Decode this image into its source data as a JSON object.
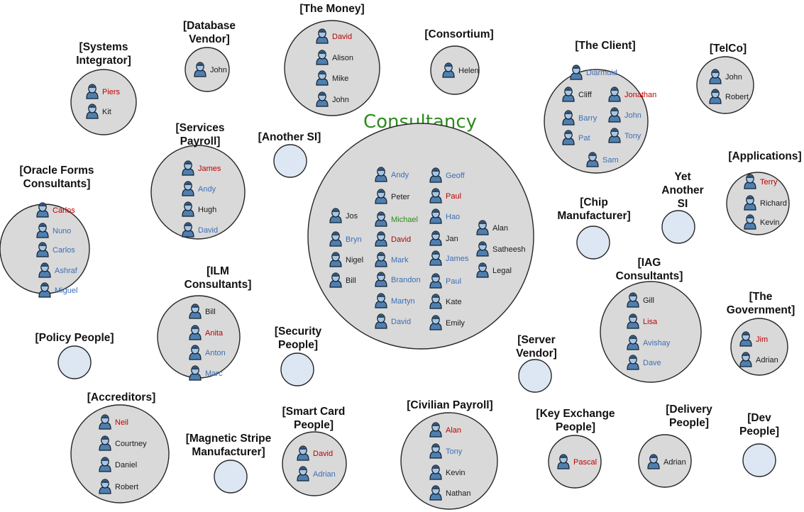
{
  "diagram": {
    "title": "Consultancy",
    "colors": {
      "black": "#1a1a1a",
      "red": "#c00000",
      "blue": "#3b6fb6",
      "green": "#2e8b1e",
      "title": "#2e8b1e"
    },
    "groups": [
      {
        "label": [
          "[Systems",
          "Integrator]"
        ],
        "people": [
          {
            "name": "Piers",
            "color": "red"
          },
          {
            "name": "Kit",
            "color": "black"
          }
        ]
      },
      {
        "label": [
          "[Database",
          "Vendor]"
        ],
        "people": [
          {
            "name": "John",
            "color": "black"
          }
        ]
      },
      {
        "label": [
          "[The Money]"
        ],
        "people": [
          {
            "name": "David",
            "color": "red"
          },
          {
            "name": "Alison",
            "color": "black"
          },
          {
            "name": "Mike",
            "color": "black"
          },
          {
            "name": "John",
            "color": "black"
          }
        ]
      },
      {
        "label": [
          "[Consortium]"
        ],
        "people": [
          {
            "name": "Helen",
            "color": "black"
          }
        ]
      },
      {
        "label": [
          "[The Client]"
        ],
        "people": [
          {
            "name": "Diarmuid",
            "color": "blue"
          },
          {
            "name": "Cliff",
            "color": "black"
          },
          {
            "name": "Jonathan",
            "color": "red"
          },
          {
            "name": "Barry",
            "color": "blue"
          },
          {
            "name": "John",
            "color": "blue"
          },
          {
            "name": "Pat",
            "color": "blue"
          },
          {
            "name": "Tony",
            "color": "blue"
          },
          {
            "name": "Sam",
            "color": "blue"
          }
        ]
      },
      {
        "label": [
          "[TelCo]"
        ],
        "people": [
          {
            "name": "John",
            "color": "black"
          },
          {
            "name": "Robert",
            "color": "black"
          }
        ]
      },
      {
        "label": [
          "[Oracle Forms",
          "Consultants]"
        ],
        "people": [
          {
            "name": "Carlos",
            "color": "red"
          },
          {
            "name": "Nuno",
            "color": "blue"
          },
          {
            "name": "Carlos",
            "color": "blue"
          },
          {
            "name": "Ashraf",
            "color": "blue"
          },
          {
            "name": "Miguel",
            "color": "blue"
          }
        ]
      },
      {
        "label": [
          "[Services",
          "Payroll]"
        ],
        "people": [
          {
            "name": "James",
            "color": "red"
          },
          {
            "name": "Andy",
            "color": "blue"
          },
          {
            "name": "Hugh",
            "color": "black"
          },
          {
            "name": "David",
            "color": "blue"
          }
        ]
      },
      {
        "label": [
          "[Another SI]"
        ],
        "people": []
      },
      {
        "label": [],
        "people": [
          {
            "name": "Jos",
            "color": "black"
          },
          {
            "name": "Bryn",
            "color": "blue"
          },
          {
            "name": "Nigel",
            "color": "black"
          },
          {
            "name": "Bill",
            "color": "black"
          },
          {
            "name": "Andy",
            "color": "blue"
          },
          {
            "name": "Peter",
            "color": "black"
          },
          {
            "name": "Michael",
            "color": "green"
          },
          {
            "name": "David",
            "color": "red"
          },
          {
            "name": "Mark",
            "color": "blue"
          },
          {
            "name": "Brandon",
            "color": "blue"
          },
          {
            "name": "Martyn",
            "color": "blue"
          },
          {
            "name": "David",
            "color": "blue"
          },
          {
            "name": "Geoff",
            "color": "blue"
          },
          {
            "name": "Paul",
            "color": "red"
          },
          {
            "name": "Hao",
            "color": "blue"
          },
          {
            "name": "Jan",
            "color": "black"
          },
          {
            "name": "James",
            "color": "blue"
          },
          {
            "name": "Paul",
            "color": "blue"
          },
          {
            "name": "Kate",
            "color": "black"
          },
          {
            "name": "Emily",
            "color": "black"
          },
          {
            "name": "Alan",
            "color": "black"
          },
          {
            "name": "Satheesh",
            "color": "black"
          },
          {
            "name": "Legal",
            "color": "black"
          }
        ]
      },
      {
        "label": [
          "[Applications]"
        ],
        "people": [
          {
            "name": "Terry",
            "color": "red"
          },
          {
            "name": "Richard",
            "color": "black"
          },
          {
            "name": "Kevin",
            "color": "black"
          }
        ]
      },
      {
        "label": [
          "Yet",
          "Another",
          "SI"
        ],
        "people": []
      },
      {
        "label": [
          "[Chip",
          "Manufacturer]"
        ],
        "people": []
      },
      {
        "label": [
          "[ILM",
          "Consultants]"
        ],
        "people": [
          {
            "name": "Bill",
            "color": "black"
          },
          {
            "name": "Anita",
            "color": "red"
          },
          {
            "name": "Anton",
            "color": "blue"
          },
          {
            "name": "Marc",
            "color": "blue"
          }
        ]
      },
      {
        "label": [
          "[IAG",
          "Consultants]"
        ],
        "people": [
          {
            "name": "Gill",
            "color": "black"
          },
          {
            "name": "Lisa",
            "color": "red"
          },
          {
            "name": "Avishay",
            "color": "blue"
          },
          {
            "name": "Dave",
            "color": "blue"
          }
        ]
      },
      {
        "label": [
          "[The",
          "Government]"
        ],
        "people": [
          {
            "name": "Jim",
            "color": "red"
          },
          {
            "name": "Adrian",
            "color": "black"
          }
        ]
      },
      {
        "label": [
          "[Policy People]"
        ],
        "people": []
      },
      {
        "label": [
          "[Security",
          "People]"
        ],
        "people": []
      },
      {
        "label": [
          "[Server",
          "Vendor]"
        ],
        "people": []
      },
      {
        "label": [
          "[Accreditors]"
        ],
        "people": [
          {
            "name": "Neil",
            "color": "red"
          },
          {
            "name": "Courtney",
            "color": "black"
          },
          {
            "name": "Daniel",
            "color": "black"
          },
          {
            "name": "Robert",
            "color": "black"
          }
        ]
      },
      {
        "label": [
          "[Magnetic Stripe",
          "Manufacturer]"
        ],
        "people": []
      },
      {
        "label": [
          "[Smart Card",
          "People]"
        ],
        "people": [
          {
            "name": "David",
            "color": "red"
          },
          {
            "name": "Adrian",
            "color": "blue"
          }
        ]
      },
      {
        "label": [
          "[Civilian Payroll]"
        ],
        "people": [
          {
            "name": "Alan",
            "color": "red"
          },
          {
            "name": "Tony",
            "color": "blue"
          },
          {
            "name": "Kevin",
            "color": "black"
          },
          {
            "name": "Nathan",
            "color": "black"
          }
        ]
      },
      {
        "label": [
          "[Key Exchange",
          "People]"
        ],
        "people": [
          {
            "name": "Pascal",
            "color": "red"
          }
        ]
      },
      {
        "label": [
          "[Delivery",
          "People]"
        ],
        "people": [
          {
            "name": "Adrian",
            "color": "black"
          }
        ]
      },
      {
        "label": [
          "[Dev",
          "People]"
        ],
        "people": []
      }
    ]
  }
}
